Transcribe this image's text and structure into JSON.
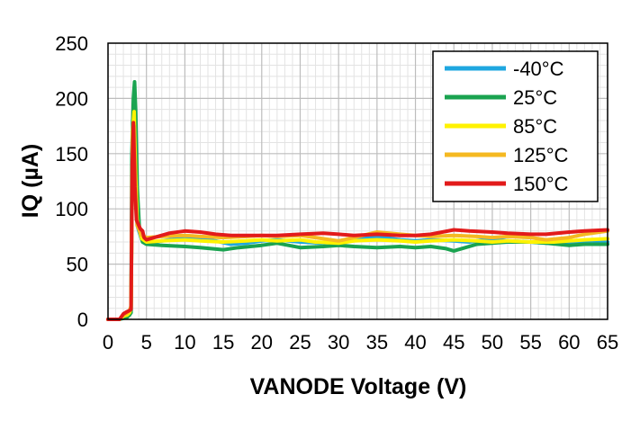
{
  "chart_data": {
    "type": "line",
    "xlabel": "VANODE Voltage (V)",
    "ylabel": "IQ (µA)",
    "xlim": [
      0,
      65
    ],
    "ylim": [
      0,
      250
    ],
    "xticks": [
      0,
      5,
      10,
      15,
      20,
      25,
      30,
      35,
      40,
      45,
      50,
      55,
      60,
      65
    ],
    "yticks": [
      0,
      50,
      100,
      150,
      200,
      250
    ],
    "x_tick_labels": [
      "0",
      "5",
      "10",
      "15",
      "20",
      "25",
      "30",
      "35",
      "40",
      "45",
      "50",
      "55",
      "60",
      "65"
    ],
    "y_tick_labels": [
      "0",
      "50",
      "100",
      "150",
      "200",
      "250"
    ],
    "grid": true,
    "legend_position": "top-right",
    "series": [
      {
        "name": "-40°C",
        "color": "#1FA7E0",
        "points": [
          [
            0,
            0
          ],
          [
            1.5,
            0
          ],
          [
            2,
            2
          ],
          [
            2.5,
            4
          ],
          [
            2.8,
            5
          ],
          [
            3,
            8
          ],
          [
            3.2,
            180
          ],
          [
            3.4,
            185
          ],
          [
            3.6,
            120
          ],
          [
            3.8,
            85
          ],
          [
            4.1,
            78
          ],
          [
            4.4,
            72
          ],
          [
            4.8,
            70
          ],
          [
            6,
            70
          ],
          [
            8,
            72
          ],
          [
            10,
            74
          ],
          [
            12,
            73
          ],
          [
            14,
            71
          ],
          [
            16,
            68
          ],
          [
            18,
            69
          ],
          [
            20,
            71
          ],
          [
            22,
            72
          ],
          [
            25,
            70
          ],
          [
            28,
            69
          ],
          [
            30,
            71
          ],
          [
            32,
            73
          ],
          [
            35,
            75
          ],
          [
            38,
            72
          ],
          [
            40,
            71
          ],
          [
            42,
            72
          ],
          [
            45,
            71
          ],
          [
            47,
            70
          ],
          [
            50,
            73
          ],
          [
            52,
            71
          ],
          [
            55,
            70
          ],
          [
            57,
            69
          ],
          [
            60,
            70
          ],
          [
            62,
            70
          ],
          [
            65,
            70
          ]
        ]
      },
      {
        "name": "25°C",
        "color": "#1AA350",
        "points": [
          [
            0,
            0
          ],
          [
            1.5,
            0
          ],
          [
            2,
            1
          ],
          [
            2.5,
            2
          ],
          [
            2.8,
            4
          ],
          [
            3,
            6
          ],
          [
            3.1,
            150
          ],
          [
            3.3,
            200
          ],
          [
            3.45,
            215
          ],
          [
            3.6,
            190
          ],
          [
            3.8,
            120
          ],
          [
            4.1,
            80
          ],
          [
            4.5,
            70
          ],
          [
            5,
            68
          ],
          [
            7,
            67
          ],
          [
            10,
            66
          ],
          [
            12,
            65
          ],
          [
            15,
            63
          ],
          [
            17,
            65
          ],
          [
            20,
            67
          ],
          [
            22,
            69
          ],
          [
            25,
            65
          ],
          [
            28,
            66
          ],
          [
            30,
            67
          ],
          [
            32,
            66
          ],
          [
            35,
            65
          ],
          [
            38,
            66
          ],
          [
            40,
            65
          ],
          [
            42,
            66
          ],
          [
            44,
            64
          ],
          [
            45,
            62
          ],
          [
            46,
            64
          ],
          [
            48,
            68
          ],
          [
            50,
            69
          ],
          [
            52,
            70
          ],
          [
            55,
            70
          ],
          [
            57,
            69
          ],
          [
            60,
            67
          ],
          [
            62,
            68
          ],
          [
            65,
            68
          ]
        ]
      },
      {
        "name": "85°C",
        "color": "#FFF200",
        "points": [
          [
            0,
            0
          ],
          [
            1.5,
            0
          ],
          [
            2,
            3
          ],
          [
            2.5,
            4
          ],
          [
            2.8,
            6
          ],
          [
            3,
            10
          ],
          [
            3.2,
            170
          ],
          [
            3.4,
            188
          ],
          [
            3.6,
            130
          ],
          [
            3.8,
            90
          ],
          [
            4.1,
            80
          ],
          [
            4.4,
            73
          ],
          [
            5,
            70
          ],
          [
            7,
            71
          ],
          [
            10,
            72
          ],
          [
            12,
            71
          ],
          [
            15,
            70
          ],
          [
            18,
            71
          ],
          [
            20,
            72
          ],
          [
            22,
            71
          ],
          [
            25,
            72
          ],
          [
            27,
            70
          ],
          [
            30,
            69
          ],
          [
            32,
            71
          ],
          [
            35,
            72
          ],
          [
            38,
            71
          ],
          [
            40,
            70
          ],
          [
            42,
            71
          ],
          [
            45,
            72
          ],
          [
            48,
            71
          ],
          [
            50,
            70
          ],
          [
            52,
            71
          ],
          [
            55,
            70
          ],
          [
            58,
            70
          ],
          [
            60,
            71
          ],
          [
            62,
            72
          ],
          [
            65,
            73
          ]
        ]
      },
      {
        "name": "125°C",
        "color": "#F5B921",
        "points": [
          [
            0,
            0
          ],
          [
            1.5,
            0
          ],
          [
            2,
            4
          ],
          [
            2.5,
            6
          ],
          [
            2.8,
            8
          ],
          [
            3,
            12
          ],
          [
            3.2,
            160
          ],
          [
            3.4,
            175
          ],
          [
            3.6,
            110
          ],
          [
            3.8,
            85
          ],
          [
            4.1,
            80
          ],
          [
            4.4,
            76
          ],
          [
            5,
            74
          ],
          [
            7,
            75
          ],
          [
            10,
            76
          ],
          [
            12,
            75
          ],
          [
            15,
            74
          ],
          [
            18,
            75
          ],
          [
            20,
            76
          ],
          [
            22,
            75
          ],
          [
            25,
            76
          ],
          [
            27,
            74
          ],
          [
            30,
            71
          ],
          [
            32,
            74
          ],
          [
            35,
            79
          ],
          [
            38,
            77
          ],
          [
            40,
            76
          ],
          [
            42,
            75
          ],
          [
            45,
            76
          ],
          [
            48,
            75
          ],
          [
            50,
            74
          ],
          [
            52,
            75
          ],
          [
            55,
            74
          ],
          [
            57,
            72
          ],
          [
            60,
            74
          ],
          [
            62,
            77
          ],
          [
            65,
            80
          ]
        ]
      },
      {
        "name": "150°C",
        "color": "#E21A1A",
        "points": [
          [
            0,
            0
          ],
          [
            1.5,
            0
          ],
          [
            2,
            5
          ],
          [
            2.5,
            7
          ],
          [
            2.8,
            8
          ],
          [
            3,
            9
          ],
          [
            3.15,
            140
          ],
          [
            3.3,
            178
          ],
          [
            3.5,
            120
          ],
          [
            3.7,
            90
          ],
          [
            4,
            85
          ],
          [
            4.2,
            82
          ],
          [
            4.5,
            80
          ],
          [
            4.7,
            74
          ],
          [
            5,
            72
          ],
          [
            6,
            74
          ],
          [
            8,
            78
          ],
          [
            10,
            80
          ],
          [
            12,
            79
          ],
          [
            14,
            77
          ],
          [
            16,
            76
          ],
          [
            20,
            76
          ],
          [
            22,
            76
          ],
          [
            25,
            77
          ],
          [
            28,
            78
          ],
          [
            30,
            77
          ],
          [
            32,
            76
          ],
          [
            35,
            77
          ],
          [
            38,
            76
          ],
          [
            40,
            76
          ],
          [
            42,
            77
          ],
          [
            45,
            81
          ],
          [
            47,
            80
          ],
          [
            50,
            79
          ],
          [
            52,
            78
          ],
          [
            55,
            77
          ],
          [
            57,
            77
          ],
          [
            60,
            79
          ],
          [
            62,
            80
          ],
          [
            65,
            81
          ]
        ]
      }
    ]
  }
}
